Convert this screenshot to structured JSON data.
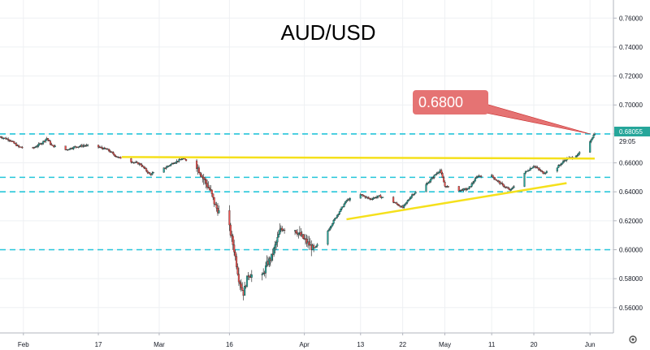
{
  "chart_data": {
    "type": "candlestick",
    "title": "AUD/USD",
    "ylim": [
      0.5425,
      0.7725
    ],
    "x_range": [
      "2020-01-27",
      "2020-06-06"
    ],
    "y_ticks": [
      "0.76000",
      "0.74000",
      "0.72000",
      "0.70000",
      "0.68000",
      "0.66000",
      "0.64000",
      "0.62000",
      "0.60000",
      "0.58000",
      "0.56000"
    ],
    "x_ticks": [
      {
        "label": "Feb",
        "date": "2020-02-01"
      },
      {
        "label": "17",
        "date": "2020-02-17"
      },
      {
        "label": "Mar",
        "date": "2020-03-01"
      },
      {
        "label": "16",
        "date": "2020-03-16"
      },
      {
        "label": "Apr",
        "date": "2020-04-01"
      },
      {
        "label": "13",
        "date": "2020-04-13"
      },
      {
        "label": "22",
        "date": "2020-04-22"
      },
      {
        "label": "May",
        "date": "2020-05-01"
      },
      {
        "label": "11",
        "date": "2020-05-11"
      },
      {
        "label": "20",
        "date": "2020-05-20"
      },
      {
        "label": "Jun",
        "date": "2020-06-01"
      }
    ],
    "close_path": [
      [
        "2020-01-27",
        0.678
      ],
      [
        "2020-01-29",
        0.676
      ],
      [
        "2020-01-31",
        0.671
      ],
      [
        "2020-02-03",
        0.67
      ],
      [
        "2020-02-05",
        0.674
      ],
      [
        "2020-02-06",
        0.677
      ],
      [
        "2020-02-07",
        0.672
      ],
      [
        "2020-02-10",
        0.669
      ],
      [
        "2020-02-12",
        0.671
      ],
      [
        "2020-02-14",
        0.672
      ],
      [
        "2020-02-17",
        0.671
      ],
      [
        "2020-02-19",
        0.669
      ],
      [
        "2020-02-21",
        0.664
      ],
      [
        "2020-02-24",
        0.661
      ],
      [
        "2020-02-26",
        0.659
      ],
      [
        "2020-02-28",
        0.652
      ],
      [
        "2020-03-02",
        0.656
      ],
      [
        "2020-03-04",
        0.66
      ],
      [
        "2020-03-06",
        0.663
      ],
      [
        "2020-03-09",
        0.658
      ],
      [
        "2020-03-10",
        0.652
      ],
      [
        "2020-03-12",
        0.64
      ],
      [
        "2020-03-13",
        0.63
      ],
      [
        "2020-03-16",
        0.615
      ],
      [
        "2020-03-17",
        0.6
      ],
      [
        "2020-03-18",
        0.58
      ],
      [
        "2020-03-19",
        0.57
      ],
      [
        "2020-03-20",
        0.583
      ],
      [
        "2020-03-23",
        0.581
      ],
      [
        "2020-03-24",
        0.59
      ],
      [
        "2020-03-25",
        0.595
      ],
      [
        "2020-03-26",
        0.605
      ],
      [
        "2020-03-27",
        0.615
      ],
      [
        "2020-03-30",
        0.614
      ],
      [
        "2020-04-01",
        0.607
      ],
      [
        "2020-04-03",
        0.6
      ],
      [
        "2020-04-06",
        0.613
      ],
      [
        "2020-04-08",
        0.624
      ],
      [
        "2020-04-10",
        0.634
      ],
      [
        "2020-04-13",
        0.638
      ],
      [
        "2020-04-15",
        0.635
      ],
      [
        "2020-04-17",
        0.637
      ],
      [
        "2020-04-20",
        0.633
      ],
      [
        "2020-04-22",
        0.629
      ],
      [
        "2020-04-24",
        0.638
      ],
      [
        "2020-04-27",
        0.645
      ],
      [
        "2020-04-29",
        0.652
      ],
      [
        "2020-04-30",
        0.655
      ],
      [
        "2020-05-01",
        0.644
      ],
      [
        "2020-05-04",
        0.641
      ],
      [
        "2020-05-06",
        0.642
      ],
      [
        "2020-05-08",
        0.651
      ],
      [
        "2020-05-11",
        0.651
      ],
      [
        "2020-05-12",
        0.648
      ],
      [
        "2020-05-14",
        0.643
      ],
      [
        "2020-05-15",
        0.641
      ],
      [
        "2020-05-18",
        0.653
      ],
      [
        "2020-05-20",
        0.658
      ],
      [
        "2020-05-22",
        0.653
      ],
      [
        "2020-05-25",
        0.657
      ],
      [
        "2020-05-27",
        0.663
      ],
      [
        "2020-05-29",
        0.664
      ],
      [
        "2020-06-01",
        0.675
      ],
      [
        "2020-06-02",
        0.6805
      ]
    ],
    "horizontal_levels": [
      0.68,
      0.65,
      0.64,
      0.6
    ],
    "trendlines": [
      {
        "from": [
          "2020-02-22",
          0.664
        ],
        "to": [
          "2020-06-02",
          0.663
        ]
      },
      {
        "from": [
          "2020-04-10",
          0.621
        ],
        "to": [
          "2020-05-27",
          0.646
        ]
      }
    ],
    "callout": {
      "text": "0.6800",
      "pointer_to": [
        "2020-06-01",
        0.68
      ]
    },
    "last_price": "0.68055",
    "countdown": "29:05",
    "grid": true,
    "colors": {
      "up": "#26a69a",
      "down": "#ef5350",
      "level": "#26c6da",
      "trend": "#f5e01b",
      "callout": "#e57373",
      "price_tag": "#26a69a"
    }
  }
}
